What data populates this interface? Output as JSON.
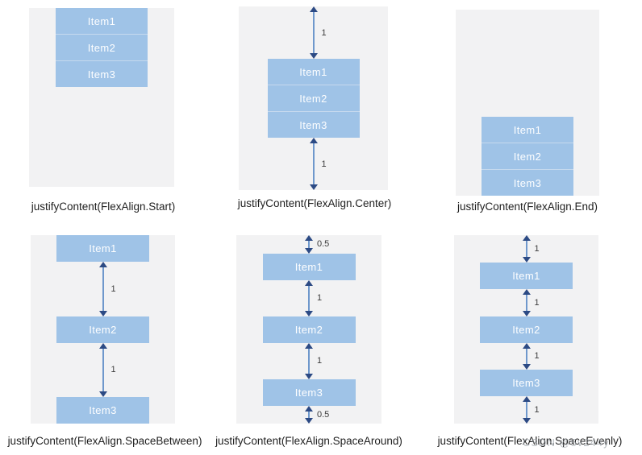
{
  "colors": {
    "page_bg": "#ffffff",
    "panel_bg": "#f2f2f3",
    "item_fill": "#9fc3e7",
    "item_divider": "#c6d9ee",
    "item_text": "#fdfeff",
    "arrow_head": "#2c4a84",
    "arrow_shaft": "#6f98cc",
    "label_text": "#3b3b3b",
    "caption_text": "#1f1f1f",
    "watermark_text": "#9aa0a6"
  },
  "panels": [
    {
      "id": "start",
      "caption": "justifyContent(FlexAlign.Start)",
      "items": [
        "Item1",
        "Item2",
        "Item3"
      ],
      "arrows": []
    },
    {
      "id": "center",
      "caption": "justifyContent(FlexAlign.Center)",
      "items": [
        "Item1",
        "Item2",
        "Item3"
      ],
      "arrows": [
        "1",
        "1"
      ]
    },
    {
      "id": "end",
      "caption": "justifyContent(FlexAlign.End)",
      "items": [
        "Item1",
        "Item2",
        "Item3"
      ],
      "arrows": []
    },
    {
      "id": "space-between",
      "caption": "justifyContent(FlexAlign.SpaceBetween)",
      "items": [
        "Item1",
        "Item2",
        "Item3"
      ],
      "arrows": [
        "1",
        "1"
      ]
    },
    {
      "id": "space-around",
      "caption": "justifyContent(FlexAlign.SpaceAround)",
      "items": [
        "Item1",
        "Item2",
        "Item3"
      ],
      "arrows": [
        "0.5",
        "1",
        "1",
        "0.5"
      ]
    },
    {
      "id": "space-evenly",
      "caption": "justifyContent(FlexAlign.SpaceEvenly)",
      "items": [
        "Item1",
        "Item2",
        "Item3"
      ],
      "arrows": [
        "1",
        "1",
        "1",
        "1"
      ]
    }
  ],
  "watermark": {
    "text": "CSDN @5v244y"
  }
}
